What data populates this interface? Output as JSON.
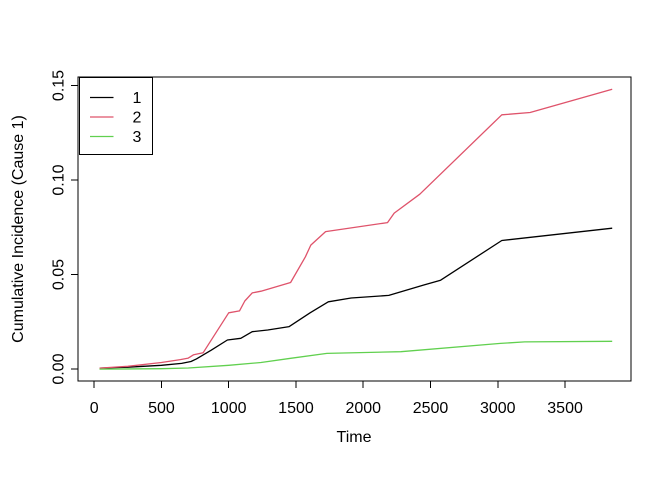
{
  "chart_data": {
    "type": "line",
    "title": "",
    "xlabel": "Time",
    "ylabel": "Cumulative Incidence (Cause 1)",
    "xlim": [
      -120,
      3990
    ],
    "ylim": [
      -0.0063,
      0.1545
    ],
    "grid": false,
    "x_ticks": [
      {
        "value": 0,
        "label": "0"
      },
      {
        "value": 500,
        "label": "500"
      },
      {
        "value": 1000,
        "label": "1000"
      },
      {
        "value": 1500,
        "label": "1500"
      },
      {
        "value": 2000,
        "label": "2000"
      },
      {
        "value": 2500,
        "label": "2500"
      },
      {
        "value": 3000,
        "label": "3000"
      },
      {
        "value": 3500,
        "label": "3500"
      }
    ],
    "y_ticks": [
      {
        "value": 0.0,
        "label": "0.00"
      },
      {
        "value": 0.05,
        "label": "0.05"
      },
      {
        "value": 0.1,
        "label": "0.10"
      },
      {
        "value": 0.15,
        "label": "0.15"
      }
    ],
    "legend": {
      "position": "topleft",
      "entries": [
        {
          "label": "1",
          "color": "#000000"
        },
        {
          "label": "2",
          "color": "#DF536B"
        },
        {
          "label": "3",
          "color": "#61D04F"
        }
      ]
    },
    "series": [
      {
        "name": "1",
        "color": "#000000",
        "points": [
          [
            40,
            0.0005
          ],
          [
            250,
            0.001
          ],
          [
            500,
            0.002
          ],
          [
            650,
            0.003
          ],
          [
            720,
            0.004
          ],
          [
            760,
            0.0054
          ],
          [
            870,
            0.01
          ],
          [
            990,
            0.0154
          ],
          [
            1090,
            0.0163
          ],
          [
            1175,
            0.0198
          ],
          [
            1290,
            0.0207
          ],
          [
            1450,
            0.0225
          ],
          [
            1605,
            0.0298
          ],
          [
            1740,
            0.0356
          ],
          [
            1910,
            0.0376
          ],
          [
            2190,
            0.039
          ],
          [
            2450,
            0.0445
          ],
          [
            2575,
            0.047
          ],
          [
            3030,
            0.068
          ],
          [
            3850,
            0.0745
          ]
        ]
      },
      {
        "name": "2",
        "color": "#DF536B",
        "points": [
          [
            40,
            0.0005
          ],
          [
            250,
            0.0015
          ],
          [
            500,
            0.0035
          ],
          [
            640,
            0.005
          ],
          [
            700,
            0.0058
          ],
          [
            740,
            0.0076
          ],
          [
            810,
            0.0086
          ],
          [
            1000,
            0.0298
          ],
          [
            1080,
            0.0308
          ],
          [
            1120,
            0.036
          ],
          [
            1175,
            0.0403
          ],
          [
            1240,
            0.0412
          ],
          [
            1460,
            0.0458
          ],
          [
            1570,
            0.0594
          ],
          [
            1610,
            0.0656
          ],
          [
            1720,
            0.0727
          ],
          [
            2180,
            0.0775
          ],
          [
            2230,
            0.0825
          ],
          [
            2420,
            0.0925
          ],
          [
            3030,
            0.1345
          ],
          [
            3240,
            0.1357
          ],
          [
            3850,
            0.148
          ]
        ]
      },
      {
        "name": "3",
        "color": "#61D04F",
        "points": [
          [
            40,
            0.0
          ],
          [
            500,
            0.0002
          ],
          [
            700,
            0.0006
          ],
          [
            1000,
            0.002
          ],
          [
            1240,
            0.0035
          ],
          [
            1460,
            0.0057
          ],
          [
            1730,
            0.0083
          ],
          [
            2280,
            0.0092
          ],
          [
            3020,
            0.0136
          ],
          [
            3200,
            0.0144
          ],
          [
            3850,
            0.0147
          ]
        ]
      }
    ]
  }
}
